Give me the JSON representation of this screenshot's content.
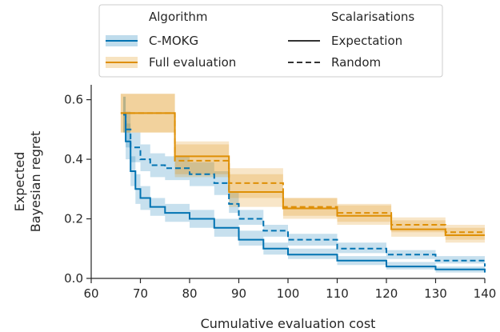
{
  "chart_data": {
    "type": "line",
    "xlabel": "Cumulative evaluation cost",
    "ylabel_lines": [
      "Expected",
      "Bayesian regret"
    ],
    "xlim": [
      60,
      140
    ],
    "ylim": [
      0,
      0.65
    ],
    "xticks": [
      60,
      70,
      80,
      90,
      100,
      110,
      120,
      130,
      140
    ],
    "yticks": [
      0.0,
      0.2,
      0.4,
      0.6
    ],
    "grid": false,
    "legend": {
      "placement": "top-center",
      "algorithm_title": "Algorithm",
      "scalarisation_title": "Scalarisations",
      "algorithm_entries": [
        "C-MOKG",
        "Full evaluation"
      ],
      "scalarisation_entries": [
        "Expectation",
        "Random"
      ]
    },
    "colors": {
      "cmokg": "#0173b2",
      "full": "#de8f05",
      "legend_style": "#333333"
    },
    "series": [
      {
        "algorithm": "C-MOKG",
        "scalarisation": "Expectation",
        "x": [
          66.5,
          67,
          68,
          69,
          70,
          72,
          75,
          80,
          85,
          90,
          95,
          100,
          110,
          120,
          130,
          140
        ],
        "y": [
          0.55,
          0.46,
          0.36,
          0.3,
          0.27,
          0.24,
          0.22,
          0.2,
          0.17,
          0.13,
          0.1,
          0.08,
          0.06,
          0.04,
          0.03,
          0.02
        ],
        "lower": [
          0.49,
          0.4,
          0.31,
          0.25,
          0.23,
          0.21,
          0.19,
          0.17,
          0.14,
          0.11,
          0.08,
          0.065,
          0.045,
          0.03,
          0.02,
          0.01
        ],
        "upper": [
          0.61,
          0.52,
          0.41,
          0.35,
          0.31,
          0.27,
          0.25,
          0.23,
          0.2,
          0.16,
          0.12,
          0.1,
          0.075,
          0.055,
          0.04,
          0.03
        ]
      },
      {
        "algorithm": "C-MOKG",
        "scalarisation": "Random",
        "x": [
          66.5,
          67,
          68,
          70,
          72,
          75,
          80,
          85,
          88,
          90,
          95,
          100,
          110,
          120,
          130,
          140
        ],
        "y": [
          0.55,
          0.5,
          0.44,
          0.4,
          0.38,
          0.37,
          0.35,
          0.32,
          0.25,
          0.2,
          0.16,
          0.13,
          0.1,
          0.08,
          0.06,
          0.04
        ],
        "lower": [
          0.49,
          0.44,
          0.39,
          0.36,
          0.34,
          0.33,
          0.31,
          0.28,
          0.22,
          0.18,
          0.14,
          0.11,
          0.085,
          0.065,
          0.05,
          0.03
        ],
        "upper": [
          0.61,
          0.56,
          0.49,
          0.45,
          0.42,
          0.41,
          0.39,
          0.36,
          0.29,
          0.23,
          0.18,
          0.15,
          0.12,
          0.095,
          0.075,
          0.06
        ]
      },
      {
        "algorithm": "Full evaluation",
        "scalarisation": "Expectation",
        "x": [
          66,
          77,
          88,
          99,
          110,
          121,
          132,
          140
        ],
        "y": [
          0.555,
          0.41,
          0.29,
          0.235,
          0.21,
          0.165,
          0.145,
          0.145
        ],
        "lower": [
          0.49,
          0.35,
          0.24,
          0.2,
          0.18,
          0.14,
          0.12,
          0.12
        ],
        "upper": [
          0.62,
          0.46,
          0.35,
          0.27,
          0.245,
          0.195,
          0.17,
          0.17
        ]
      },
      {
        "algorithm": "Full evaluation",
        "scalarisation": "Random",
        "x": [
          66,
          77,
          88,
          99,
          110,
          121,
          132,
          140
        ],
        "y": [
          0.555,
          0.395,
          0.32,
          0.24,
          0.22,
          0.18,
          0.155,
          0.155
        ],
        "lower": [
          0.49,
          0.34,
          0.27,
          0.21,
          0.19,
          0.155,
          0.13,
          0.13
        ],
        "upper": [
          0.62,
          0.45,
          0.37,
          0.27,
          0.25,
          0.205,
          0.18,
          0.18
        ]
      }
    ]
  }
}
